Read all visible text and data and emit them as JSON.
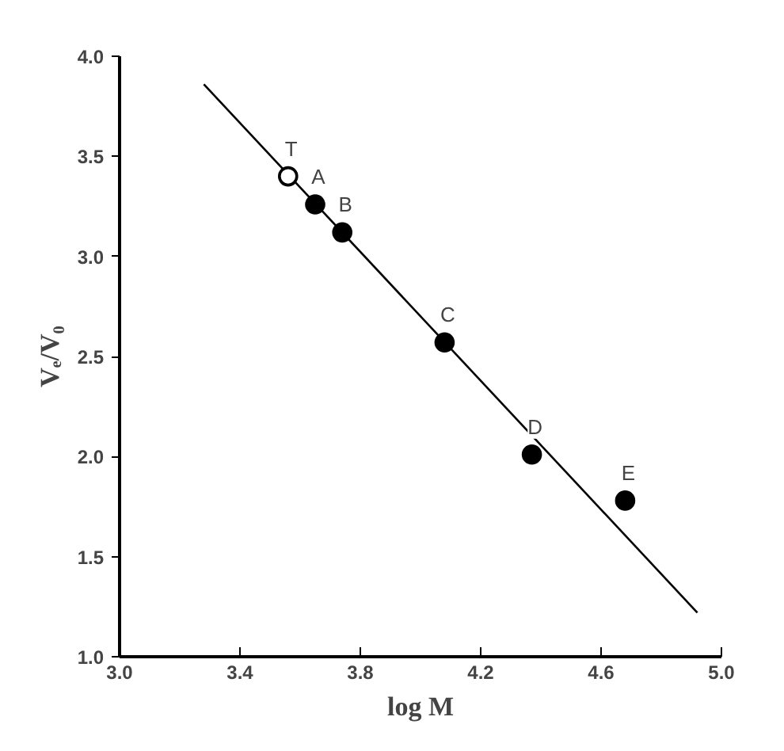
{
  "chart_data": {
    "type": "scatter",
    "xlabel": "log M",
    "ylabel": "Vₑ/V₀",
    "xlim": [
      3.0,
      5.0
    ],
    "ylim": [
      1.0,
      4.0
    ],
    "xticks": [
      {
        "value": 3.0,
        "label": "3.0"
      },
      3.4,
      3.8,
      4.2,
      4.6,
      {
        "value": 5.0,
        "label": "5.0"
      }
    ],
    "yticks": [
      {
        "value": 1.0,
        "label": "1.0"
      },
      1.5,
      {
        "value": 2.0,
        "label": "2.0"
      },
      2.5,
      {
        "value": 3.0,
        "label": "3.0"
      },
      3.5,
      {
        "value": 4.0,
        "label": "4.0"
      }
    ],
    "grid": false,
    "series": [
      {
        "color": "#ffffff",
        "marker": "circle",
        "x": [
          3.56
        ],
        "values": [
          3.4
        ]
      },
      {
        "color": "#000000",
        "marker": "circle",
        "x": [
          3.65,
          3.74,
          4.08,
          4.37,
          4.68
        ],
        "values": [
          3.26,
          3.12,
          2.57,
          2.01,
          1.78
        ]
      },
      {
        "type": "line",
        "color": "#000000",
        "line_style": "solid",
        "x": [
          3.28,
          4.92
        ],
        "values": [
          3.86,
          1.22
        ]
      }
    ],
    "annotations": [
      {
        "text": "T",
        "x": 3.56,
        "y": 3.4
      },
      {
        "text": "A",
        "x": 3.65,
        "y": 3.26
      },
      {
        "text": "B",
        "x": 3.74,
        "y": 3.12
      },
      {
        "text": "C",
        "x": 4.08,
        "y": 2.57
      },
      {
        "text": "D",
        "x": 4.37,
        "y": 2.01
      },
      {
        "text": "E",
        "x": 4.68,
        "y": 1.78
      }
    ]
  }
}
